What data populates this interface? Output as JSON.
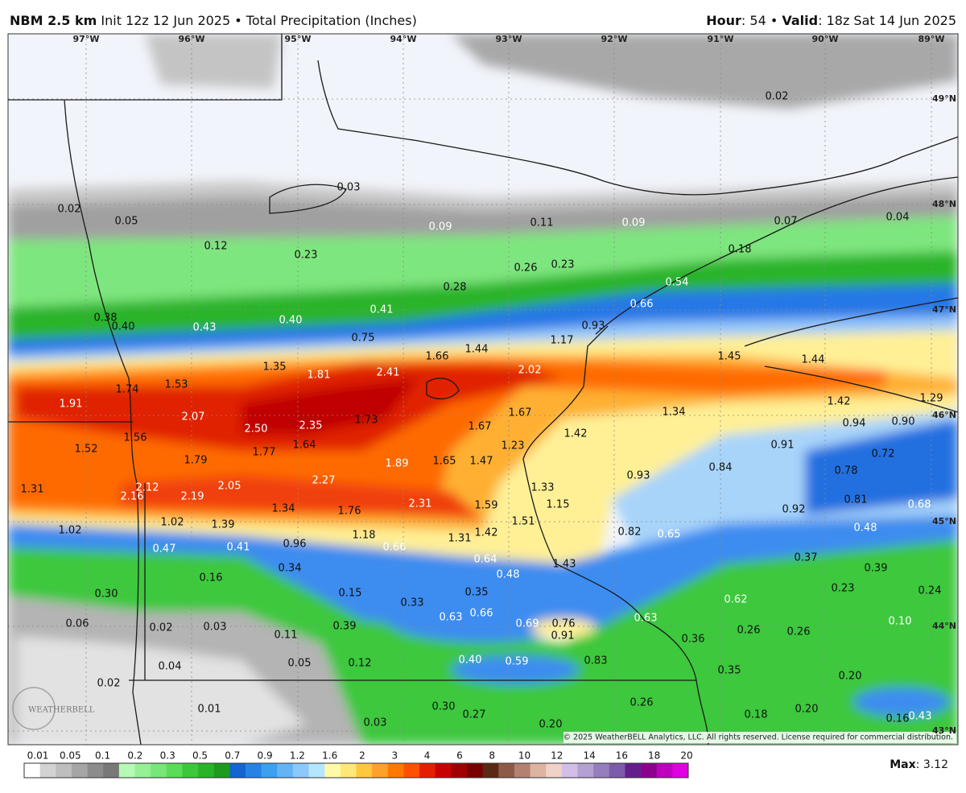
{
  "header": {
    "model": "NBM 2.5 km",
    "init": "Init 12z 12 Jun 2025",
    "separator": "•",
    "product": "Total Precipitation (Inches)",
    "hour_key": "Hour",
    "hour_value": ": 54",
    "valid_key": "Valid",
    "valid_value": ": 18z Sat 14 Jun 2025"
  },
  "map": {
    "longitudes": [
      "97°W",
      "96°W",
      "95°W",
      "94°W",
      "93°W",
      "92°W",
      "91°W",
      "90°W",
      "89°W"
    ],
    "latitudes": [
      "49°N",
      "48°N",
      "47°N",
      "46°N",
      "45°N",
      "44°N",
      "43°N"
    ],
    "labels": [
      "0.03",
      "0.02",
      "0.05",
      "0.09",
      "0.11",
      "0.09",
      "0.07",
      "0.04",
      "0.02",
      "0.12",
      "0.23",
      "0.18",
      "0.26",
      "0.23",
      "0.28",
      "0.54",
      "0.41",
      "0.66",
      "0.38",
      "0.40",
      "0.43",
      "0.40",
      "0.93",
      "0.75",
      "1.17",
      "1.66",
      "1.44",
      "1.45",
      "1.44",
      "1.35",
      "1.81",
      "2.41",
      "2.02",
      "1.91",
      "1.74",
      "1.53",
      "1.42",
      "1.29",
      "2.07",
      "2.50",
      "2.35",
      "1.73",
      "1.67",
      "1.67",
      "1.34",
      "0.94",
      "0.90",
      "1.52",
      "1.56",
      "1.79",
      "1.77",
      "1.64",
      "1.23",
      "1.42",
      "0.91",
      "0.72",
      "1.89",
      "1.65",
      "1.47",
      "0.84",
      "0.78",
      "0.93",
      "1.31",
      "2.12",
      "2.16",
      "2.19",
      "2.05",
      "2.27",
      "1.33",
      "1.34",
      "1.76",
      "2.31",
      "1.59",
      "1.15",
      "0.92",
      "0.81",
      "0.68",
      "1.02",
      "1.39",
      "1.51",
      "1.42",
      "1.31",
      "1.18",
      "0.82",
      "0.65",
      "0.48",
      "1.02",
      "0.47",
      "0.41",
      "0.96",
      "0.66",
      "0.64",
      "1.43",
      "0.37",
      "0.39",
      "0.16",
      "0.34",
      "0.48",
      "0.30",
      "0.15",
      "0.33",
      "0.35",
      "0.62",
      "0.23",
      "0.24",
      "0.06",
      "0.02",
      "0.03",
      "0.39",
      "0.63",
      "0.66",
      "0.69",
      "0.76",
      "0.91",
      "0.63",
      "0.26",
      "0.26",
      "0.10",
      "0.11",
      "0.36",
      "0.04",
      "0.05",
      "0.12",
      "0.40",
      "0.59",
      "0.83",
      "0.35",
      "0.20",
      "0.02",
      "0.01",
      "0.30",
      "0.27",
      "0.26",
      "0.18",
      "0.20",
      "0.16",
      "0.43",
      "0.03",
      "0.20"
    ],
    "watermark": "WEATHERBELL",
    "copyright": "© 2025 WeatherBELL Analytics, LLC. All rights reserved. License required for commercial distribution."
  },
  "colorbar": {
    "labels": [
      "0.01",
      "0.05",
      "0.1",
      "0.2",
      "0.3",
      "0.5",
      "0.7",
      "0.9",
      "1.2",
      "1.6",
      "2",
      "3",
      "4",
      "6",
      "8",
      "10",
      "12",
      "14",
      "16",
      "18",
      "20"
    ],
    "colors": [
      "#ffffff",
      "#d2d2d2",
      "#bebebe",
      "#a5a5a5",
      "#8c8c8c",
      "#787878",
      "#b4fab4",
      "#96f096",
      "#78e678",
      "#5adc5a",
      "#3cc83c",
      "#28b428",
      "#1e9b1e",
      "#1464d2",
      "#2882e6",
      "#3ca0f0",
      "#64b4f5",
      "#8cc8fa",
      "#b4e6ff",
      "#fffaaa",
      "#ffe878",
      "#ffc83c",
      "#ffa028",
      "#ff7800",
      "#ff5000",
      "#e61e00",
      "#c80000",
      "#a00000",
      "#780000",
      "#5a2814",
      "#8c5a46",
      "#b48070",
      "#dcb4a0",
      "#f0d2c8",
      "#d2bee6",
      "#b4a0d2",
      "#967dbe",
      "#7d5aaa",
      "#641e8c",
      "#8c008c",
      "#be00be",
      "#e100e1"
    ]
  },
  "max": {
    "key": "Max",
    "value": ": 3.12"
  }
}
